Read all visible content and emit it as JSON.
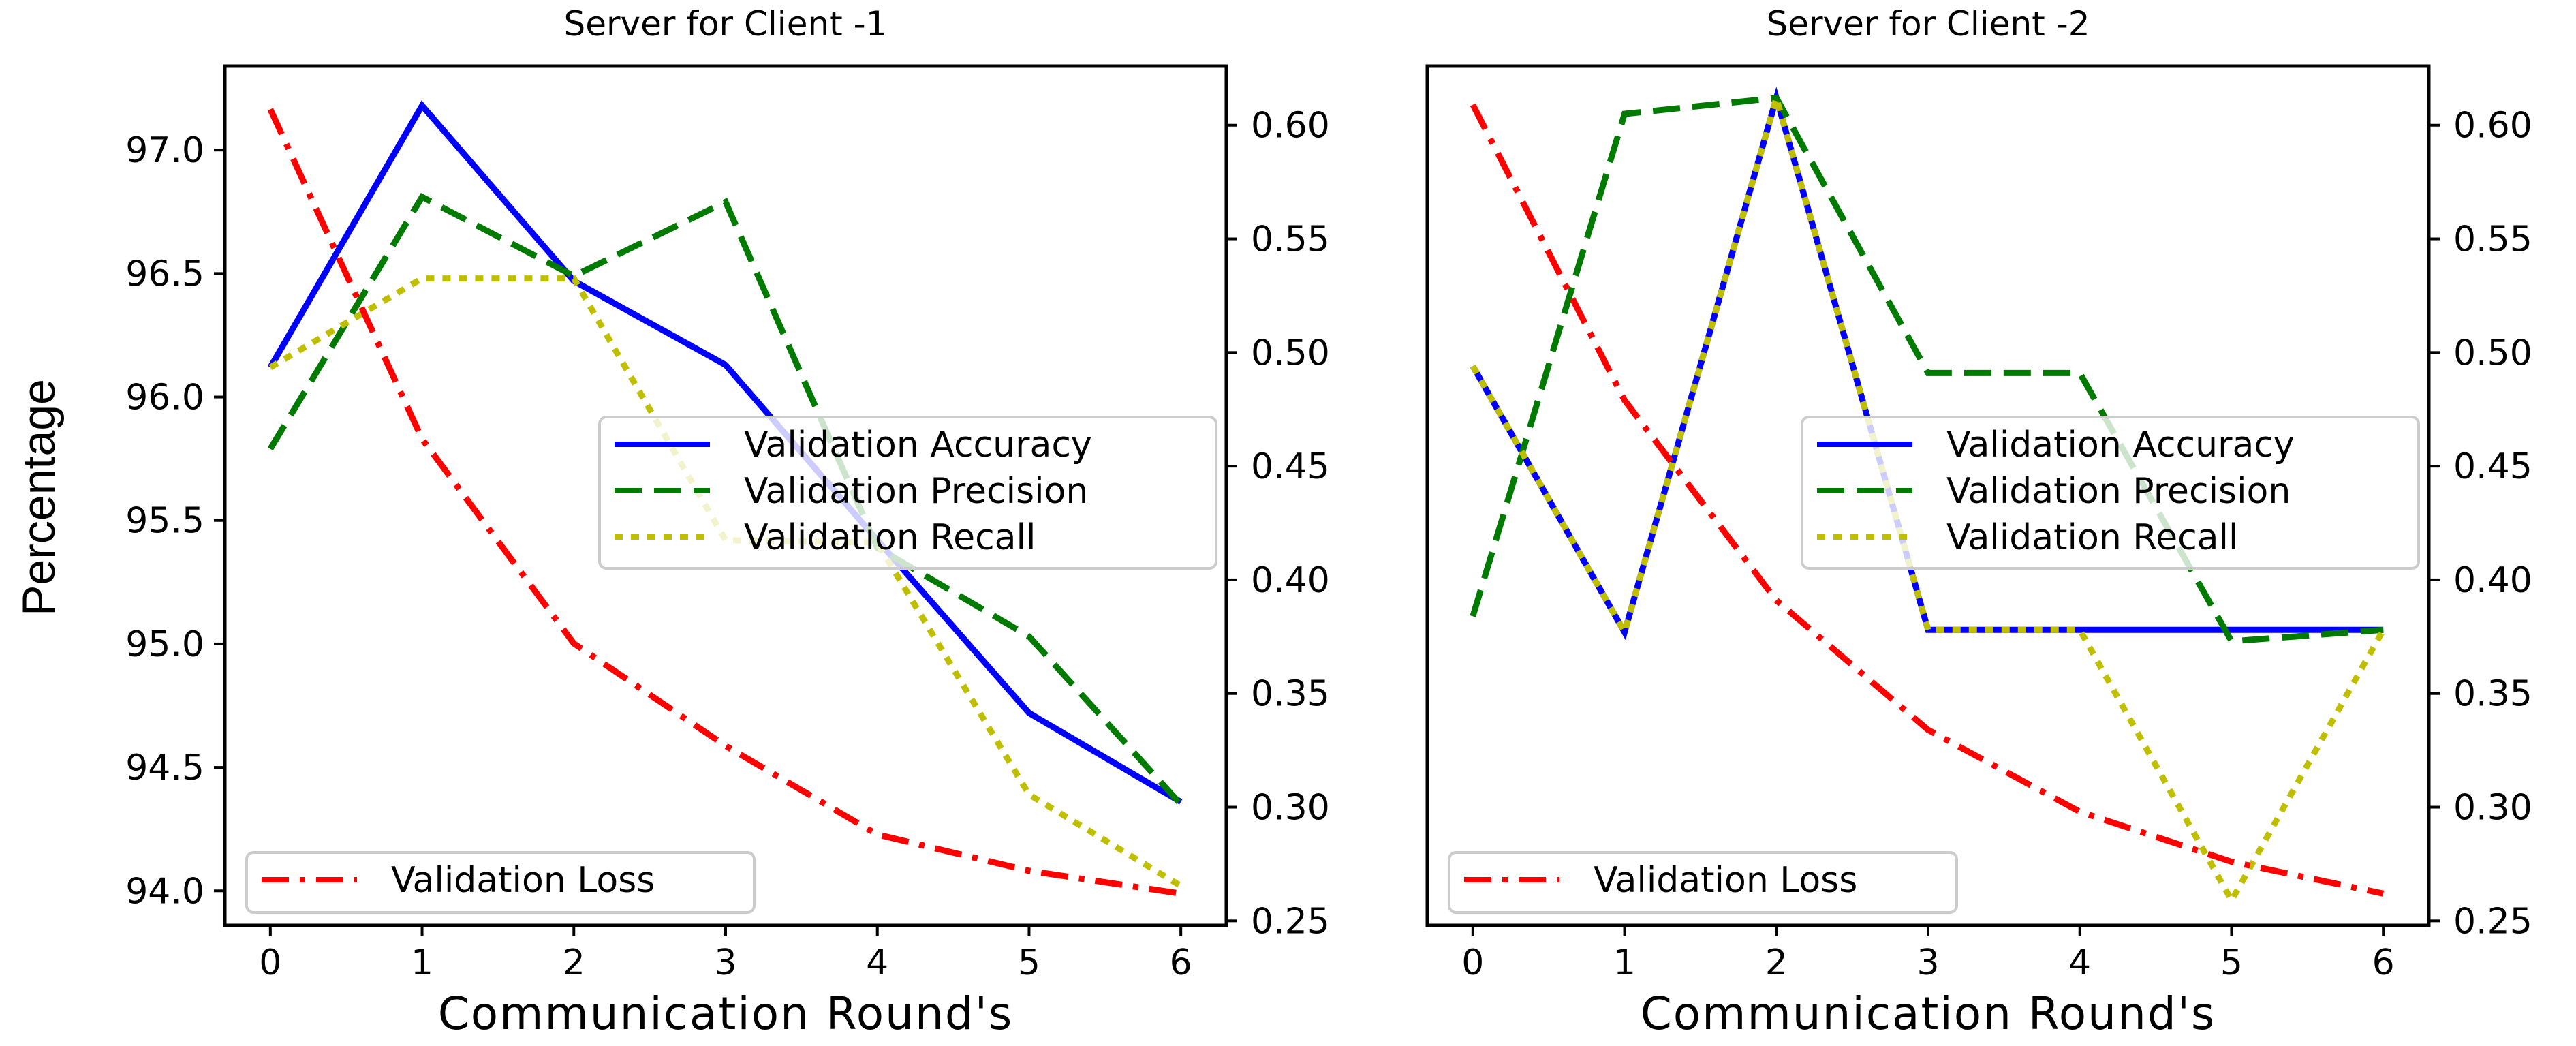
{
  "ylabel": "Percentage",
  "chart_data": [
    {
      "type": "line",
      "title": "Server for Client -1",
      "xlabel": "Communication Round's",
      "ylabel": "Percentage",
      "x": [
        0,
        1,
        2,
        3,
        4,
        5,
        6
      ],
      "xlim": [
        -0.3,
        6.3
      ],
      "xticks": [
        "0",
        "1",
        "2",
        "3",
        "4",
        "5",
        "6"
      ],
      "ylim": [
        93.86,
        97.34
      ],
      "yticks": [
        "94.0",
        "94.5",
        "95.0",
        "95.5",
        "96.0",
        "96.5",
        "97.0"
      ],
      "y2lim": [
        0.248,
        0.626
      ],
      "y2ticks": [
        "0.25",
        "0.30",
        "0.35",
        "0.40",
        "0.45",
        "0.50",
        "0.55",
        "0.60"
      ],
      "series": [
        {
          "name": "Validation Accuracy",
          "axis": "left",
          "color": "#0000ff",
          "style": "solid",
          "values": [
            96.12,
            97.18,
            96.47,
            96.13,
            95.42,
            94.72,
            94.36
          ]
        },
        {
          "name": "Validation Precision",
          "axis": "left",
          "color": "#007a00",
          "style": "dashed",
          "values": [
            95.79,
            96.81,
            96.49,
            96.79,
            95.39,
            95.03,
            94.35
          ]
        },
        {
          "name": "Validation Recall",
          "axis": "left",
          "color": "#bfbf00",
          "style": "dotted",
          "values": [
            96.12,
            96.48,
            96.48,
            95.42,
            95.41,
            94.39,
            94.02
          ]
        },
        {
          "name": "Validation Loss",
          "axis": "right",
          "color": "#ff0000",
          "style": "dashdot",
          "values": [
            0.607,
            0.462,
            0.372,
            0.327,
            0.288,
            0.272,
            0.262
          ]
        }
      ],
      "legend_top": [
        "Validation Accuracy",
        "Validation Precision",
        "Validation Recall"
      ],
      "legend_bottom": [
        "Validation Loss"
      ],
      "legend_top_placement": "center-right",
      "legend_bottom_placement": "lower-left",
      "grid": false
    },
    {
      "type": "line",
      "title": "Server for Client -2",
      "xlabel": "Communication Round's",
      "ylabel": "",
      "x": [
        0,
        1,
        2,
        3,
        4,
        5,
        6
      ],
      "xlim": [
        -0.3,
        6.3
      ],
      "xticks": [
        "0",
        "1",
        "2",
        "3",
        "4",
        "5",
        "6"
      ],
      "y2lim": [
        0.248,
        0.626
      ],
      "y2ticks": [
        "0.25",
        "0.30",
        "0.35",
        "0.40",
        "0.45",
        "0.50",
        "0.55",
        "0.60"
      ],
      "series": [
        {
          "name": "Validation Accuracy",
          "axis": "right",
          "color": "#0000ff",
          "style": "solid",
          "values": [
            0.494,
            0.377,
            0.612,
            0.378,
            0.378,
            0.378,
            0.378
          ]
        },
        {
          "name": "Validation Precision",
          "axis": "right",
          "color": "#007a00",
          "style": "dashed",
          "values": [
            0.384,
            0.605,
            0.612,
            0.491,
            0.491,
            0.373,
            0.378
          ]
        },
        {
          "name": "Validation Recall",
          "axis": "right",
          "color": "#bfbf00",
          "style": "dotted",
          "values": [
            0.494,
            0.377,
            0.612,
            0.378,
            0.378,
            0.259,
            0.378
          ]
        },
        {
          "name": "Validation Loss",
          "axis": "right",
          "color": "#ff0000",
          "style": "dashdot",
          "values": [
            0.609,
            0.479,
            0.391,
            0.334,
            0.298,
            0.276,
            0.262
          ]
        }
      ],
      "legend_top": [
        "Validation Accuracy",
        "Validation Precision",
        "Validation Recall"
      ],
      "legend_bottom": [
        "Validation Loss"
      ],
      "legend_top_placement": "center-right",
      "legend_bottom_placement": "lower-left",
      "grid": false
    }
  ]
}
